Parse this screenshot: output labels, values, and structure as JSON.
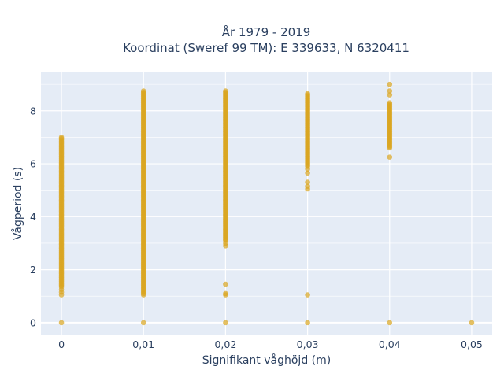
{
  "chart_data": {
    "type": "scatter",
    "title_line1": "År 1979 - 2019",
    "title_line2": "Koordinat (Sweref 99 TM): E 339633, N 6320411",
    "xlabel": "Signifikant våghöjd (m)",
    "ylabel": "Vågperiod (s)",
    "xlim": [
      -0.0025,
      0.0525
    ],
    "ylim": [
      -0.45,
      9.45
    ],
    "x_ticks": [
      0,
      0.01,
      0.02,
      0.03,
      0.04,
      0.05
    ],
    "x_tick_labels": [
      "0",
      "0,01",
      "0,02",
      "0,03",
      "0,04",
      "0,05"
    ],
    "y_ticks": [
      0,
      2,
      4,
      6,
      8
    ],
    "y_tick_labels": [
      "0",
      "2",
      "4",
      "6",
      "8"
    ],
    "grid": true,
    "colors": {
      "marker": "#DAA520",
      "plot_background": "#E5ECF6",
      "grid": "#ffffff",
      "text": "#2a3f5f"
    },
    "columns": [
      {
        "x": 0,
        "y_ranges": [
          [
            1.35,
            7.0
          ]
        ],
        "y_values": [
          0,
          1.05,
          1.15,
          1.25
        ]
      },
      {
        "x": 0.01,
        "y_ranges": [
          [
            1.05,
            8.75
          ]
        ],
        "y_values": [
          0
        ]
      },
      {
        "x": 0.02,
        "y_ranges": [
          [
            3.1,
            8.75
          ]
        ],
        "y_values": [
          0,
          1.05,
          1.1,
          1.45,
          2.9,
          3.0
        ]
      },
      {
        "x": 0.03,
        "y_ranges": [
          [
            5.9,
            8.65
          ]
        ],
        "y_values": [
          0,
          1.05,
          5.05,
          5.15,
          5.3,
          5.65,
          5.8
        ]
      },
      {
        "x": 0.04,
        "y_ranges": [
          [
            6.6,
            8.3
          ]
        ],
        "y_values": [
          0,
          6.25,
          8.6,
          8.75,
          9.0
        ]
      },
      {
        "x": 0.05,
        "y_ranges": [],
        "y_values": [
          0
        ]
      }
    ]
  }
}
